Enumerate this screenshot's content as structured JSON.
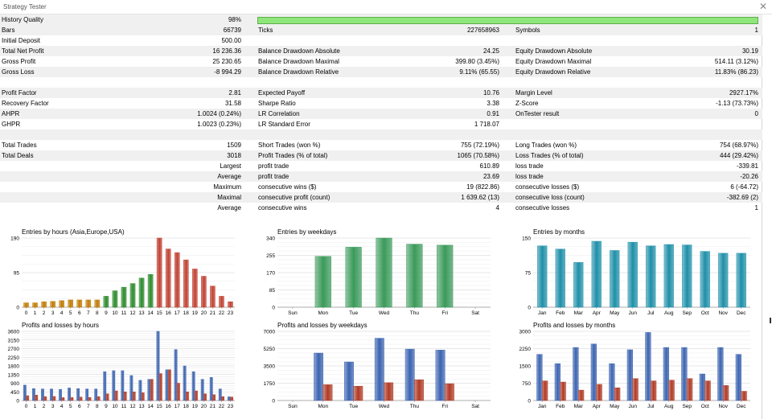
{
  "window": {
    "title": "Strategy Tester",
    "close_icon": "close-icon"
  },
  "stats": {
    "rows": [
      {
        "shade": true,
        "c1l": "History Quality",
        "c1v": "98%",
        "c2l": "",
        "c2v": "",
        "c3l": "",
        "c3v": "",
        "bar": 0.98
      },
      {
        "shade": true,
        "c1l": "Bars",
        "c1v": "66739",
        "c2l": "Ticks",
        "c2v": "227658963",
        "c3l": "Symbols",
        "c3v": "1"
      },
      {
        "shade": false,
        "c1l": "Initial Deposit",
        "c1v": "500.00",
        "c2l": "",
        "c2v": "",
        "c3l": "",
        "c3v": ""
      },
      {
        "shade": true,
        "c1l": "Total Net Profit",
        "c1v": "16 236.36",
        "c2l": "Balance Drawdown Absolute",
        "c2v": "24.25",
        "c3l": "Equity Drawdown Absolute",
        "c3v": "30.19"
      },
      {
        "shade": false,
        "c1l": "Gross Profit",
        "c1v": "25 230.65",
        "c2l": "Balance Drawdown Maximal",
        "c2v": "399.80 (3.45%)",
        "c3l": "Equity Drawdown Maximal",
        "c3v": "514.11 (3.12%)"
      },
      {
        "shade": true,
        "c1l": "Gross Loss",
        "c1v": "-8 994.29",
        "c2l": "Balance Drawdown Relative",
        "c2v": "9.11% (65.55)",
        "c3l": "Equity Drawdown Relative",
        "c3v": "11.83% (86.23)"
      },
      {
        "shade": false,
        "c1l": "",
        "c1v": "",
        "c2l": "",
        "c2v": "",
        "c3l": "",
        "c3v": ""
      },
      {
        "shade": true,
        "c1l": "Profit Factor",
        "c1v": "2.81",
        "c2l": "Expected Payoff",
        "c2v": "10.76",
        "c3l": "Margin Level",
        "c3v": "2927.17%"
      },
      {
        "shade": false,
        "c1l": "Recovery Factor",
        "c1v": "31.58",
        "c2l": "Sharpe Ratio",
        "c2v": "3.38",
        "c3l": "Z-Score",
        "c3v": "-1.13 (73.73%)"
      },
      {
        "shade": true,
        "c1l": "AHPR",
        "c1v": "1.0024 (0.24%)",
        "c2l": "LR Correlation",
        "c2v": "0.91",
        "c3l": "OnTester result",
        "c3v": "0"
      },
      {
        "shade": false,
        "c1l": "GHPR",
        "c1v": "1.0023 (0.23%)",
        "c2l": "LR Standard Error",
        "c2v": "1 718.07",
        "c3l": "",
        "c3v": ""
      },
      {
        "shade": true,
        "c1l": "",
        "c1v": "",
        "c2l": "",
        "c2v": "",
        "c3l": "",
        "c3v": ""
      },
      {
        "shade": false,
        "c1l": "Total Trades",
        "c1v": "1509",
        "c2l": "Short Trades (won %)",
        "c2v": "755 (72.19%)",
        "c3l": "Long Trades (won %)",
        "c3v": "754 (68.97%)"
      },
      {
        "shade": true,
        "c1l": "Total Deals",
        "c1v": "3018",
        "c2l": "Profit Trades (% of total)",
        "c2v": "1065 (70.58%)",
        "c3l": "Loss Trades (% of total)",
        "c3v": "444 (29.42%)"
      },
      {
        "shade": false,
        "c1l": "",
        "c1v": "Largest",
        "c2l": "profit trade",
        "c2v": "610.89",
        "c3l": "loss trade",
        "c3v": "-339.81"
      },
      {
        "shade": true,
        "c1l": "",
        "c1v": "Average",
        "c2l": "profit trade",
        "c2v": "23.69",
        "c3l": "loss trade",
        "c3v": "-20.26"
      },
      {
        "shade": false,
        "c1l": "",
        "c1v": "Maximum",
        "c2l": "consecutive wins ($)",
        "c2v": "19 (822.86)",
        "c3l": "consecutive losses ($)",
        "c3v": "6 (-64.72)"
      },
      {
        "shade": true,
        "c1l": "",
        "c1v": "Maximal",
        "c2l": "consecutive profit (count)",
        "c2v": "1 639.62 (13)",
        "c3l": "consecutive loss (count)",
        "c3v": "-382.69 (2)"
      },
      {
        "shade": false,
        "c1l": "",
        "c1v": "Average",
        "c2l": "consecutive wins",
        "c2v": "4",
        "c3l": "consecutive losses",
        "c3v": "1"
      }
    ]
  },
  "chart_data": [
    {
      "id": "entries-hours",
      "type": "bar",
      "title": "Entries by hours (Asia,Europe,USA)",
      "categories": [
        "0",
        "1",
        "2",
        "3",
        "4",
        "5",
        "6",
        "7",
        "8",
        "9",
        "10",
        "11",
        "12",
        "13",
        "14",
        "15",
        "16",
        "17",
        "18",
        "19",
        "20",
        "21",
        "22",
        "23"
      ],
      "values": [
        12,
        12,
        15,
        16,
        18,
        20,
        20,
        20,
        20,
        30,
        45,
        55,
        65,
        80,
        90,
        190,
        160,
        150,
        130,
        105,
        85,
        58,
        30,
        15
      ],
      "bar_colors": [
        "#c07a00",
        "#c07a00",
        "#c07a00",
        "#c07a00",
        "#c07a00",
        "#c07a00",
        "#c07a00",
        "#c07a00",
        "#c07a00",
        "#2a8a2a",
        "#2a8a2a",
        "#2a8a2a",
        "#2a8a2a",
        "#2a8a2a",
        "#2a8a2a",
        "#c04030",
        "#c04030",
        "#c04030",
        "#c04030",
        "#c04030",
        "#c04030",
        "#c04030",
        "#c04030",
        "#c04030"
      ],
      "yticks": [
        "0",
        "95",
        "190"
      ],
      "ylim": [
        0,
        190
      ]
    },
    {
      "id": "entries-weekdays",
      "type": "bar",
      "title": "Entries by weekdays",
      "categories": [
        "Sun",
        "Mon",
        "Tue",
        "Wed",
        "Thu",
        "Fri",
        "Sat"
      ],
      "values": [
        0,
        250,
        295,
        340,
        310,
        305,
        0
      ],
      "bar_color": "#3a9a5a",
      "yticks": [
        "0",
        "85",
        "170",
        "255",
        "340"
      ],
      "ylim": [
        0,
        340
      ]
    },
    {
      "id": "entries-months",
      "type": "bar",
      "title": "Entries by months",
      "categories": [
        "Jan",
        "Feb",
        "Mar",
        "Apr",
        "May",
        "Jun",
        "Jul",
        "Aug",
        "Sep",
        "Oct",
        "Nov",
        "Dec"
      ],
      "values": [
        133,
        126,
        97,
        143,
        123,
        141,
        133,
        136,
        135,
        121,
        117,
        117
      ],
      "bar_color": "#1e8fa8",
      "yticks": [
        "0",
        "75",
        "150"
      ],
      "ylim": [
        0,
        150
      ]
    },
    {
      "id": "pl-hours",
      "type": "bar",
      "title": "Profits and losses by hours",
      "categories": [
        "0",
        "1",
        "2",
        "3",
        "4",
        "5",
        "6",
        "7",
        "8",
        "9",
        "10",
        "11",
        "12",
        "13",
        "14",
        "15",
        "16",
        "17",
        "18",
        "19",
        "20",
        "21",
        "22",
        "23"
      ],
      "series": [
        {
          "values": [
            800,
            620,
            600,
            600,
            580,
            650,
            620,
            600,
            600,
            1500,
            1550,
            1550,
            1300,
            1050,
            1100,
            3600,
            1600,
            2650,
            1800,
            1500,
            1100,
            1200,
            600,
            190
          ],
          "color": "#3b63b0"
        },
        {
          "values": [
            250,
            280,
            200,
            210,
            150,
            160,
            180,
            160,
            200,
            350,
            500,
            450,
            450,
            400,
            1100,
            1400,
            1600,
            900,
            450,
            500,
            350,
            300,
            200,
            180
          ],
          "color": "#b03a25"
        }
      ],
      "yticks": [
        "0",
        "450",
        "900",
        "1350",
        "1800",
        "2250",
        "2700",
        "3150",
        "3600"
      ],
      "ylim": [
        0,
        3600
      ]
    },
    {
      "id": "pl-weekdays",
      "type": "bar",
      "title": "Profits and losses by weekdays",
      "categories": [
        "Sun",
        "Mon",
        "Tue",
        "Wed",
        "Thu",
        "Fri",
        "Sat"
      ],
      "series": [
        {
          "values": [
            0,
            4800,
            3900,
            6300,
            5200,
            5100,
            0
          ],
          "color": "#3b63b0"
        },
        {
          "values": [
            0,
            1600,
            1450,
            1800,
            2100,
            1700,
            0
          ],
          "color": "#b03a25"
        }
      ],
      "yticks": [
        "0",
        "1750",
        "3500",
        "5250",
        "7000"
      ],
      "ylim": [
        0,
        7000
      ]
    },
    {
      "id": "pl-months",
      "type": "bar",
      "title": "Profits and losses by months",
      "categories": [
        "Jan",
        "Feb",
        "Mar",
        "Apr",
        "May",
        "Jun",
        "Jul",
        "Aug",
        "Sep",
        "Oct",
        "Nov",
        "Dec"
      ],
      "series": [
        {
          "values": [
            2000,
            1600,
            2300,
            2450,
            1600,
            2200,
            2950,
            2300,
            2300,
            1150,
            2300,
            2000
          ],
          "color": "#3b63b0"
        },
        {
          "values": [
            850,
            800,
            450,
            700,
            550,
            950,
            850,
            880,
            950,
            850,
            650,
            400
          ],
          "color": "#b03a25"
        }
      ],
      "yticks": [
        "0",
        "750",
        "1500",
        "2250",
        "3000"
      ],
      "ylim": [
        0,
        3000
      ]
    }
  ]
}
